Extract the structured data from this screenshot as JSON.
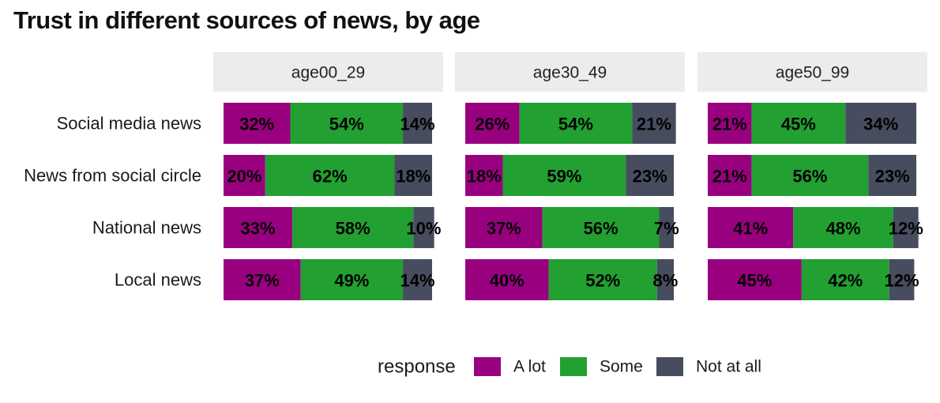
{
  "title": "Trust in different sources of news, by age",
  "colors": {
    "A lot": "#990080",
    "Some": "#22a031",
    "Not at all": "#474d5e",
    "strip": "#ececec"
  },
  "chart_data": {
    "type": "bar",
    "orientation": "horizontal",
    "stacked": true,
    "title": "Trust in different sources of news, by age",
    "xlabel": "",
    "ylabel": "",
    "xlim": [
      0,
      100
    ],
    "grid": false,
    "facets": [
      "age00_29",
      "age30_49",
      "age50_99"
    ],
    "categories": [
      "Social media news",
      "News from social circle",
      "National news",
      "Local news"
    ],
    "legend": {
      "title": "response",
      "entries": [
        "A lot",
        "Some",
        "Not at all"
      ],
      "position": "bottom"
    },
    "panels": [
      {
        "facet": "age00_29",
        "series": [
          {
            "name": "A lot",
            "values": [
              32,
              20,
              33,
              37
            ],
            "labels": [
              "32%",
              "20%",
              "33%",
              "37%"
            ]
          },
          {
            "name": "Some",
            "values": [
              54,
              62,
              58,
              49
            ],
            "labels": [
              "54%",
              "62%",
              "58%",
              "49%"
            ]
          },
          {
            "name": "Not at all",
            "values": [
              14,
              18,
              10,
              14
            ],
            "labels": [
              "14%",
              "18%",
              "10%",
              "14%"
            ]
          }
        ]
      },
      {
        "facet": "age30_49",
        "series": [
          {
            "name": "A lot",
            "values": [
              26,
              18,
              37,
              40
            ],
            "labels": [
              "26%",
              "18%",
              "37%",
              "40%"
            ]
          },
          {
            "name": "Some",
            "values": [
              54,
              59,
              56,
              52
            ],
            "labels": [
              "54%",
              "59%",
              "56%",
              "52%"
            ]
          },
          {
            "name": "Not at all",
            "values": [
              21,
              23,
              7,
              8
            ],
            "labels": [
              "21%",
              "23%",
              "7%",
              "8%"
            ]
          }
        ]
      },
      {
        "facet": "age50_99",
        "series": [
          {
            "name": "A lot",
            "values": [
              21,
              21,
              41,
              45
            ],
            "labels": [
              "21%",
              "21%",
              "41%",
              "45%"
            ]
          },
          {
            "name": "Some",
            "values": [
              45,
              56,
              48,
              42
            ],
            "labels": [
              "45%",
              "56%",
              "48%",
              "42%"
            ]
          },
          {
            "name": "Not at all",
            "values": [
              34,
              23,
              12,
              12
            ],
            "labels": [
              "34%",
              "23%",
              "12%",
              "12%"
            ]
          }
        ]
      }
    ]
  }
}
